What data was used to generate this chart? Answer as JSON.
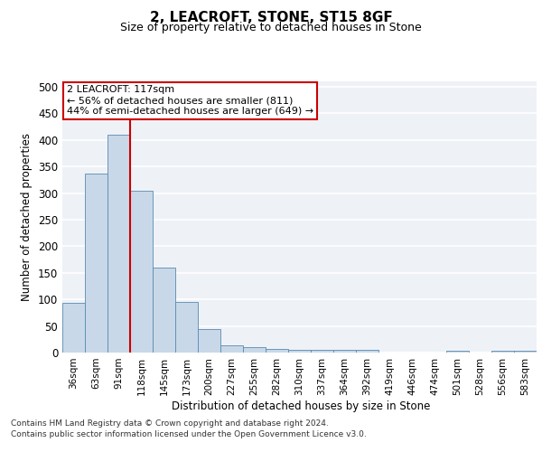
{
  "title": "2, LEACROFT, STONE, ST15 8GF",
  "subtitle": "Size of property relative to detached houses in Stone",
  "xlabel": "Distribution of detached houses by size in Stone",
  "ylabel": "Number of detached properties",
  "footnote1": "Contains HM Land Registry data © Crown copyright and database right 2024.",
  "footnote2": "Contains public sector information licensed under the Open Government Licence v3.0.",
  "bin_labels": [
    "36sqm",
    "63sqm",
    "91sqm",
    "118sqm",
    "145sqm",
    "173sqm",
    "200sqm",
    "227sqm",
    "255sqm",
    "282sqm",
    "310sqm",
    "337sqm",
    "364sqm",
    "392sqm",
    "419sqm",
    "446sqm",
    "474sqm",
    "501sqm",
    "528sqm",
    "556sqm",
    "583sqm"
  ],
  "bar_values": [
    93,
    336,
    409,
    304,
    160,
    95,
    44,
    14,
    10,
    7,
    5,
    5,
    5,
    5,
    0,
    0,
    0,
    4,
    0,
    4,
    4
  ],
  "bar_color": "#c8d8e8",
  "bar_edge_color": "#5a8ab0",
  "vline_bin_index": 3,
  "annotation_title": "2 LEACROFT: 117sqm",
  "annotation_line1": "← 56% of detached houses are smaller (811)",
  "annotation_line2": "44% of semi-detached houses are larger (649) →",
  "annotation_box_color": "#ffffff",
  "annotation_box_edge": "#cc0000",
  "vline_color": "#cc0000",
  "ylim": [
    0,
    510
  ],
  "yticks": [
    0,
    50,
    100,
    150,
    200,
    250,
    300,
    350,
    400,
    450,
    500
  ],
  "background_color": "#eef2f7",
  "grid_color": "#ffffff",
  "title_fontsize": 11,
  "subtitle_fontsize": 9
}
